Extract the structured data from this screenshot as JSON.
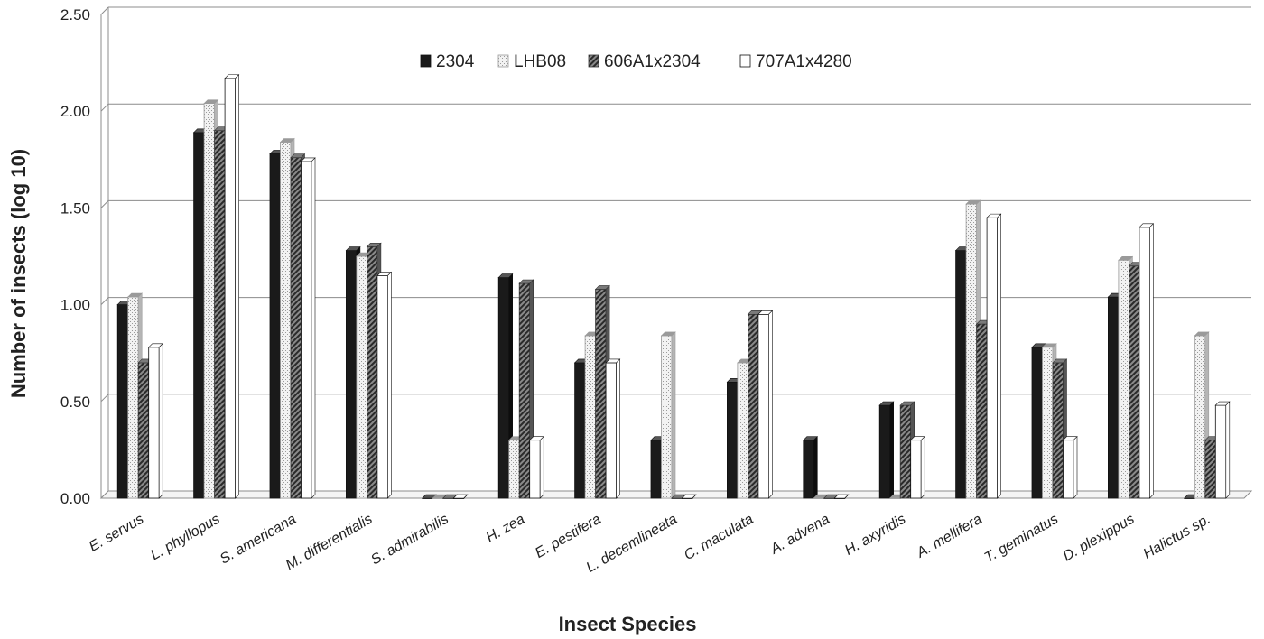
{
  "chart_data": {
    "type": "bar",
    "title": "",
    "xlabel": "Insect Species",
    "ylabel": "Number  of insects (log 10)",
    "ylim": [
      0,
      2.5
    ],
    "yticks": [
      "0.00",
      "0.50",
      "1.00",
      "1.50",
      "2.00",
      "2.50"
    ],
    "grid": true,
    "legend_position": "top-center",
    "categories": [
      "E. servus",
      "L. phyllopus",
      "S. americana",
      "M. differentialis",
      "S. admirabilis",
      "H. zea",
      "E. pestifera",
      "L. decemlineata",
      "C. maculata",
      "A. advena",
      "H. axyridis",
      "A. mellifera",
      "T. geminatus",
      "D. plexippus",
      "Halictus sp."
    ],
    "series": [
      {
        "name": "2304",
        "values": [
          1.0,
          1.89,
          1.78,
          1.28,
          0.0,
          1.14,
          0.7,
          0.3,
          0.6,
          0.3,
          0.48,
          1.28,
          0.78,
          1.04,
          0.0
        ]
      },
      {
        "name": "LHB08",
        "values": [
          1.04,
          2.04,
          1.84,
          1.25,
          0.0,
          0.3,
          0.84,
          0.84,
          0.7,
          0.0,
          0.0,
          1.52,
          0.78,
          1.23,
          0.84
        ]
      },
      {
        "name": "606A1x2304",
        "values": [
          0.7,
          1.9,
          1.76,
          1.3,
          0.0,
          1.11,
          1.08,
          0.0,
          0.95,
          0.0,
          0.48,
          0.9,
          0.7,
          1.2,
          0.3
        ]
      },
      {
        "name": "707A1x4280",
        "values": [
          0.78,
          2.17,
          1.74,
          1.15,
          0.0,
          0.3,
          0.7,
          0.0,
          0.95,
          0.0,
          0.3,
          1.45,
          0.3,
          1.4,
          0.48
        ]
      }
    ]
  }
}
